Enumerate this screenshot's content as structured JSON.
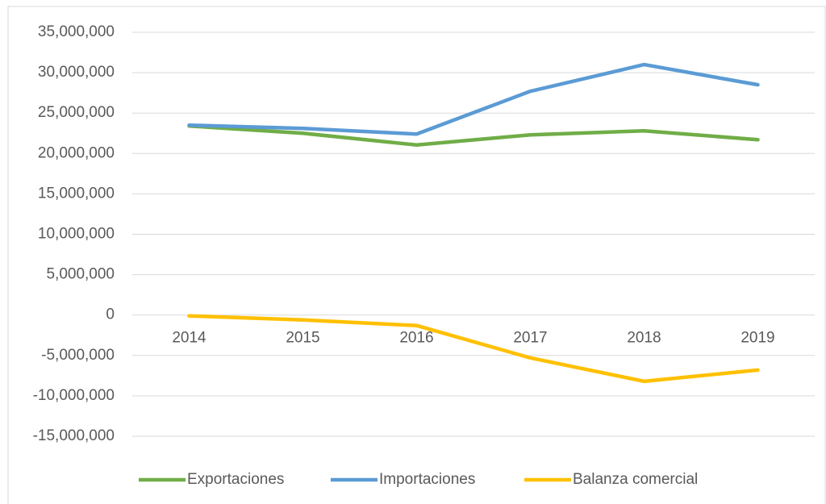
{
  "chart_data": {
    "type": "line",
    "categories": [
      "2014",
      "2015",
      "2016",
      "2017",
      "2018",
      "2019"
    ],
    "series": [
      {
        "name": "Exportaciones",
        "color": "#70ad47",
        "values": [
          23400000,
          22500000,
          21050000,
          22300000,
          22800000,
          21700000
        ]
      },
      {
        "name": "Importaciones",
        "color": "#5b9bd5",
        "values": [
          23500000,
          23100000,
          22400000,
          27700000,
          31000000,
          28500000
        ]
      },
      {
        "name": "Balanza comercial",
        "color": "#ffc000",
        "values": [
          -100000,
          -600000,
          -1300000,
          -5300000,
          -8200000,
          -6800000
        ]
      }
    ],
    "ylim": [
      -15000000,
      35000000
    ],
    "yticks": [
      {
        "value": -15000000,
        "label": "-15,000,000"
      },
      {
        "value": -10000000,
        "label": "-10,000,000"
      },
      {
        "value": -5000000,
        "label": "-5,000,000"
      },
      0,
      {
        "value": 5000000,
        "label": "5,000,000"
      },
      {
        "value": 10000000,
        "label": "10,000,000"
      },
      {
        "value": 15000000,
        "label": "15,000,000"
      },
      {
        "value": 20000000,
        "label": "20,000,000"
      },
      {
        "value": 25000000,
        "label": "25,000,000"
      },
      {
        "value": 30000000,
        "label": "30,000,000"
      },
      {
        "value": 35000000,
        "label": "35,000,000"
      }
    ],
    "grid": true,
    "legend": "bottom"
  }
}
